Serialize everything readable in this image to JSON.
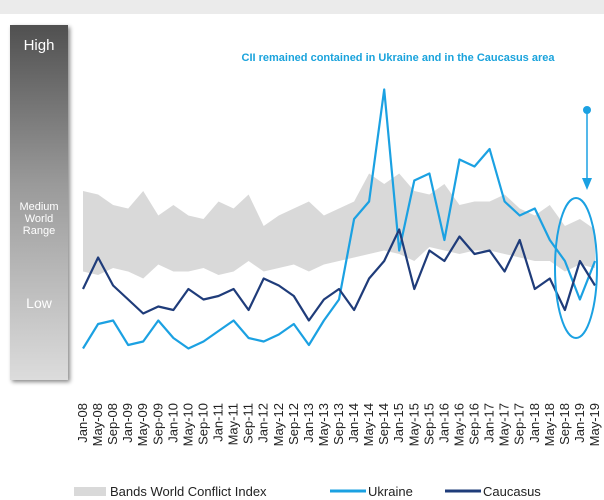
{
  "chart_data": {
    "type": "line",
    "annotation": "CII remained contained in Ukraine and in the Caucasus area",
    "scale_labels": {
      "high": "High",
      "medium": "Medium World Range",
      "low": "Low"
    },
    "categories": [
      "Jan-08",
      "May-08",
      "Sep-08",
      "Jan-09",
      "May-09",
      "Sep-09",
      "Jan-10",
      "May-10",
      "Sep-10",
      "Jan-11",
      "May-11",
      "Sep-11",
      "Jan-12",
      "May-12",
      "Sep-12",
      "Jan-13",
      "May-13",
      "Sep-13",
      "Jan-14",
      "May-14",
      "Sep-14",
      "Jan-15",
      "May-15",
      "Sep-15",
      "Jan-16",
      "May-16",
      "Sep-16",
      "Jan-17",
      "May-17",
      "Sep-17",
      "Jan-18",
      "May-18",
      "Sep-18",
      "Jan-19",
      "May-19"
    ],
    "ylim": [
      0,
      100
    ],
    "band": {
      "name": "Bands World Conflict Index",
      "color": "#d9d9d9",
      "upper": [
        54,
        53,
        50,
        49,
        54,
        47,
        50,
        47,
        46,
        51,
        49,
        53,
        44,
        47,
        49,
        51,
        47,
        49,
        51,
        59,
        56,
        59,
        54,
        53,
        56,
        50,
        51,
        51,
        53,
        49,
        47,
        50,
        44,
        46,
        43
      ],
      "lower": [
        31,
        30,
        32,
        31,
        29,
        33,
        31,
        31,
        32,
        30,
        31,
        34,
        31,
        32,
        33,
        31,
        33,
        34,
        35,
        36,
        37,
        36,
        34,
        38,
        37,
        36,
        37,
        37,
        36,
        35,
        34,
        34,
        31,
        33,
        32
      ]
    },
    "series": [
      {
        "name": "Ukraine",
        "color": "#1ba1e2",
        "values": [
          9,
          16,
          17,
          10,
          11,
          17,
          12,
          9,
          11,
          14,
          17,
          12,
          11,
          13,
          16,
          10,
          17,
          23,
          46,
          51,
          83,
          37,
          57,
          59,
          40,
          63,
          61,
          66,
          51,
          47,
          49,
          40,
          34,
          23,
          34
        ]
      },
      {
        "name": "Caucasus",
        "color": "#1f3c7a",
        "values": [
          26,
          35,
          27,
          23,
          19,
          21,
          20,
          26,
          23,
          24,
          26,
          20,
          29,
          27,
          24,
          17,
          23,
          26,
          20,
          29,
          34,
          43,
          26,
          37,
          34,
          41,
          36,
          37,
          31,
          40,
          26,
          29,
          20,
          34,
          27
        ]
      }
    ]
  }
}
